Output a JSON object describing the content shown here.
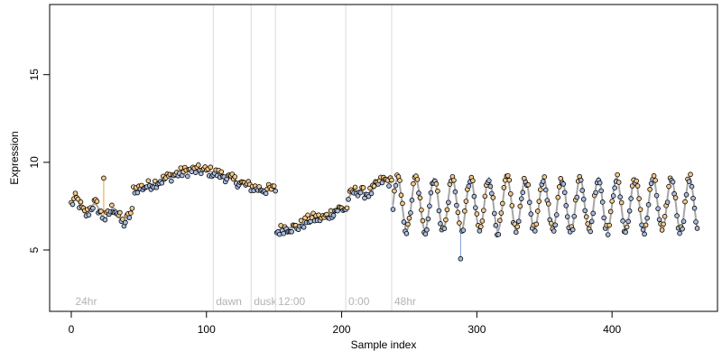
{
  "chart_data": {
    "type": "scatter",
    "title": "",
    "xlabel": "Sample index",
    "ylabel": "Expression",
    "xlim": [
      -16,
      478
    ],
    "ylim": [
      1.5,
      19.0
    ],
    "x_ticks": [
      0,
      100,
      200,
      300,
      400
    ],
    "y_ticks": [
      5,
      10,
      15
    ],
    "grid": false,
    "legend": "none",
    "colors": {
      "point_fill": "#f5c98a",
      "point_fill_alt": "#a9bce0",
      "point_stroke": "#000000",
      "trend_line": "#a6a6a6",
      "up_stem": "#e6a23c",
      "down_stem": "#7b9ed9",
      "vertical_line": "#d9d9d9",
      "vertical_label": "#b3b3b3"
    },
    "vertical_lines": [
      {
        "x": 105,
        "label": "dawn"
      },
      {
        "x": 133,
        "label": "dusk"
      },
      {
        "x": 151,
        "label": "12:00"
      },
      {
        "x": 203,
        "label": "0:00"
      },
      {
        "x": 237,
        "label": "48hr"
      }
    ],
    "corner_label": {
      "x": 3,
      "label": "24hr"
    },
    "segments": [
      {
        "start": 0,
        "end": 45,
        "base": 7.6,
        "trend": -0.018,
        "amp": 0.35,
        "period": 14,
        "noise": 0.35
      },
      {
        "start": 46,
        "end": 151,
        "base": 9.0,
        "trend": 0.0,
        "amp": 0.55,
        "period": 95,
        "noise": 0.3
      },
      {
        "start": 152,
        "end": 204,
        "base": 6.0,
        "trend": 0.027,
        "amp": 0.1,
        "period": 20,
        "noise": 0.3
      },
      {
        "start": 205,
        "end": 237,
        "base": 8.0,
        "trend": 0.03,
        "amp": 0.2,
        "period": 20,
        "noise": 0.3
      },
      {
        "start": 238,
        "end": 463,
        "base": 7.6,
        "trend": 0.0,
        "amp": 1.5,
        "period": 13.5,
        "noise": 0.3
      }
    ],
    "outliers": [
      {
        "x": 24,
        "y": 9.1
      },
      {
        "x": 288,
        "y": 4.5
      }
    ],
    "n_points": 464
  }
}
